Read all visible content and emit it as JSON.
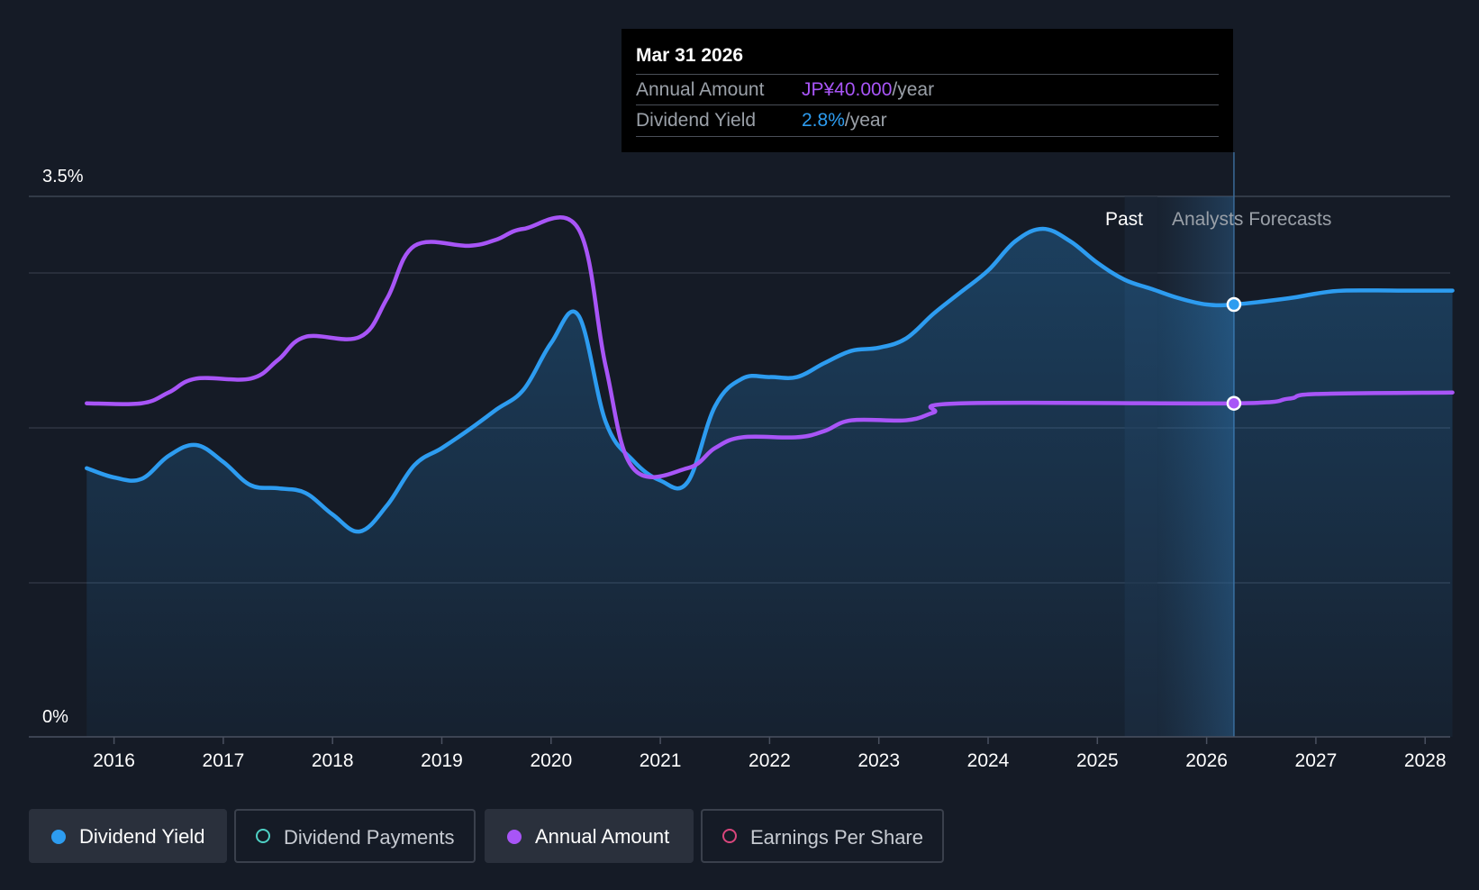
{
  "tooltip": {
    "date": "Mar 31 2026",
    "rows": [
      {
        "label": "Annual Amount",
        "value": "JP¥40.000",
        "unit": "/year"
      },
      {
        "label": "Dividend Yield",
        "value": "2.8%",
        "unit": "/year"
      }
    ]
  },
  "regions": {
    "past_label": "Past",
    "forecast_label": "Analysts Forecasts"
  },
  "legend": [
    {
      "label": "Dividend Yield",
      "active": true,
      "color": "#2d9cf0"
    },
    {
      "label": "Dividend Payments",
      "active": false,
      "color": "#4fd1c5"
    },
    {
      "label": "Annual Amount",
      "active": true,
      "color": "#a855f7"
    },
    {
      "label": "Earnings Per Share",
      "active": false,
      "color": "#d9467c"
    }
  ],
  "colors": {
    "background": "#151b26",
    "dividend_yield": "#2d9cf0",
    "annual_amount": "#a855f7",
    "grid": "#2e3542",
    "axis_text": "#ffffff"
  },
  "chart_data": {
    "type": "line",
    "title": "",
    "ylabel": "",
    "ylim": [
      0,
      3.5
    ],
    "y_tick_labels": [
      "0%",
      "3.5%"
    ],
    "x_tick_labels": [
      "2016",
      "2017",
      "2018",
      "2019",
      "2020",
      "2021",
      "2022",
      "2023",
      "2024",
      "2025",
      "2026",
      "2027",
      "2028"
    ],
    "x_range": [
      2015.25,
      2028.25
    ],
    "past_end_x": 2025.25,
    "forecast_start_x": 2025.55,
    "highlight_x": 2026.25,
    "grid": true,
    "series": [
      {
        "name": "Dividend Yield",
        "unit": "%",
        "area": true,
        "points": [
          [
            2015.75,
            1.74
          ],
          [
            2016.0,
            1.68
          ],
          [
            2016.25,
            1.67
          ],
          [
            2016.5,
            1.82
          ],
          [
            2016.75,
            1.89
          ],
          [
            2017.0,
            1.78
          ],
          [
            2017.25,
            1.63
          ],
          [
            2017.5,
            1.61
          ],
          [
            2017.75,
            1.58
          ],
          [
            2018.0,
            1.44
          ],
          [
            2018.25,
            1.33
          ],
          [
            2018.5,
            1.5
          ],
          [
            2018.75,
            1.76
          ],
          [
            2019.0,
            1.87
          ],
          [
            2019.25,
            1.99
          ],
          [
            2019.5,
            2.12
          ],
          [
            2019.75,
            2.25
          ],
          [
            2020.0,
            2.55
          ],
          [
            2020.25,
            2.73
          ],
          [
            2020.5,
            2.04
          ],
          [
            2020.75,
            1.79
          ],
          [
            2021.0,
            1.66
          ],
          [
            2021.25,
            1.65
          ],
          [
            2021.5,
            2.14
          ],
          [
            2021.75,
            2.32
          ],
          [
            2022.0,
            2.33
          ],
          [
            2022.25,
            2.33
          ],
          [
            2022.5,
            2.42
          ],
          [
            2022.75,
            2.5
          ],
          [
            2023.0,
            2.52
          ],
          [
            2023.25,
            2.58
          ],
          [
            2023.5,
            2.74
          ],
          [
            2023.75,
            2.88
          ],
          [
            2024.0,
            3.02
          ],
          [
            2024.25,
            3.21
          ],
          [
            2024.5,
            3.29
          ],
          [
            2024.75,
            3.21
          ],
          [
            2025.0,
            3.07
          ],
          [
            2025.25,
            2.96
          ],
          [
            2025.5,
            2.9
          ],
          [
            2025.75,
            2.84
          ],
          [
            2026.0,
            2.8
          ],
          [
            2026.25,
            2.8
          ],
          [
            2026.75,
            2.84
          ],
          [
            2027.0,
            2.87
          ],
          [
            2027.25,
            2.89
          ],
          [
            2027.75,
            2.89
          ],
          [
            2028.25,
            2.89
          ]
        ]
      },
      {
        "name": "Annual Amount",
        "unit": "JP¥",
        "area": false,
        "points": [
          [
            2015.75,
            2.16
          ],
          [
            2016.25,
            2.16
          ],
          [
            2016.5,
            2.23
          ],
          [
            2016.75,
            2.32
          ],
          [
            2017.25,
            2.32
          ],
          [
            2017.5,
            2.44
          ],
          [
            2017.75,
            2.59
          ],
          [
            2018.25,
            2.59
          ],
          [
            2018.5,
            2.84
          ],
          [
            2018.75,
            3.18
          ],
          [
            2019.25,
            3.18
          ],
          [
            2019.5,
            3.22
          ],
          [
            2019.75,
            3.29
          ],
          [
            2020.25,
            3.29
          ],
          [
            2020.5,
            2.4
          ],
          [
            2020.75,
            1.74
          ],
          [
            2021.25,
            1.74
          ],
          [
            2021.5,
            1.87
          ],
          [
            2021.75,
            1.94
          ],
          [
            2022.25,
            1.94
          ],
          [
            2022.5,
            1.98
          ],
          [
            2022.75,
            2.05
          ],
          [
            2023.25,
            2.05
          ],
          [
            2023.5,
            2.1
          ],
          [
            2023.75,
            2.16
          ],
          [
            2026.25,
            2.16
          ],
          [
            2026.75,
            2.19
          ],
          [
            2027.0,
            2.22
          ],
          [
            2028.25,
            2.23
          ]
        ]
      }
    ]
  }
}
